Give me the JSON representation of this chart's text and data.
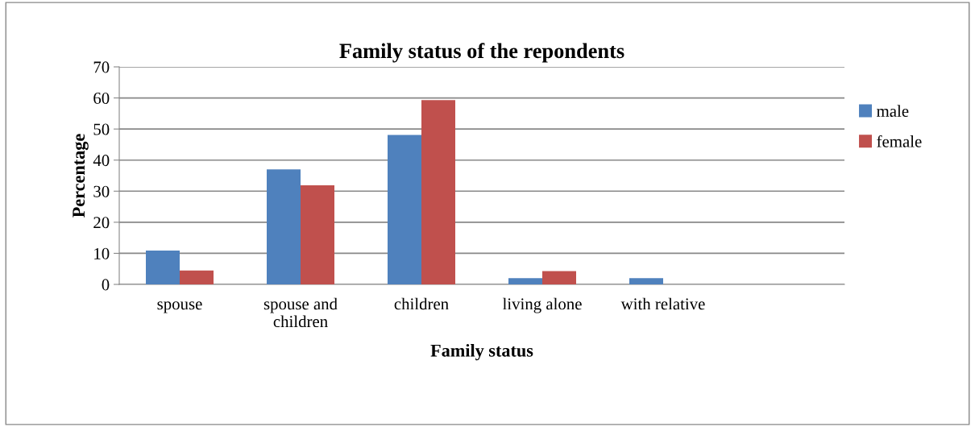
{
  "chart_data": {
    "type": "bar",
    "title": "Family status of the repondents",
    "xlabel": "Family status",
    "ylabel": "Percentage",
    "categories": [
      "spouse",
      "spouse and\nchildren",
      "children",
      "living alone",
      "with relative",
      null
    ],
    "series": [
      {
        "name": "male",
        "color": "#4f81bd",
        "values": [
          10.9,
          37,
          48.1,
          2,
          2,
          null
        ]
      },
      {
        "name": "female",
        "color": "#c0504d",
        "values": [
          4.5,
          31.9,
          59.3,
          4.3,
          0,
          null
        ]
      }
    ],
    "ylim": [
      0,
      70
    ],
    "yticks": [
      0,
      10,
      20,
      30,
      40,
      50,
      60,
      70
    ],
    "grid": "y",
    "legend": "right"
  }
}
